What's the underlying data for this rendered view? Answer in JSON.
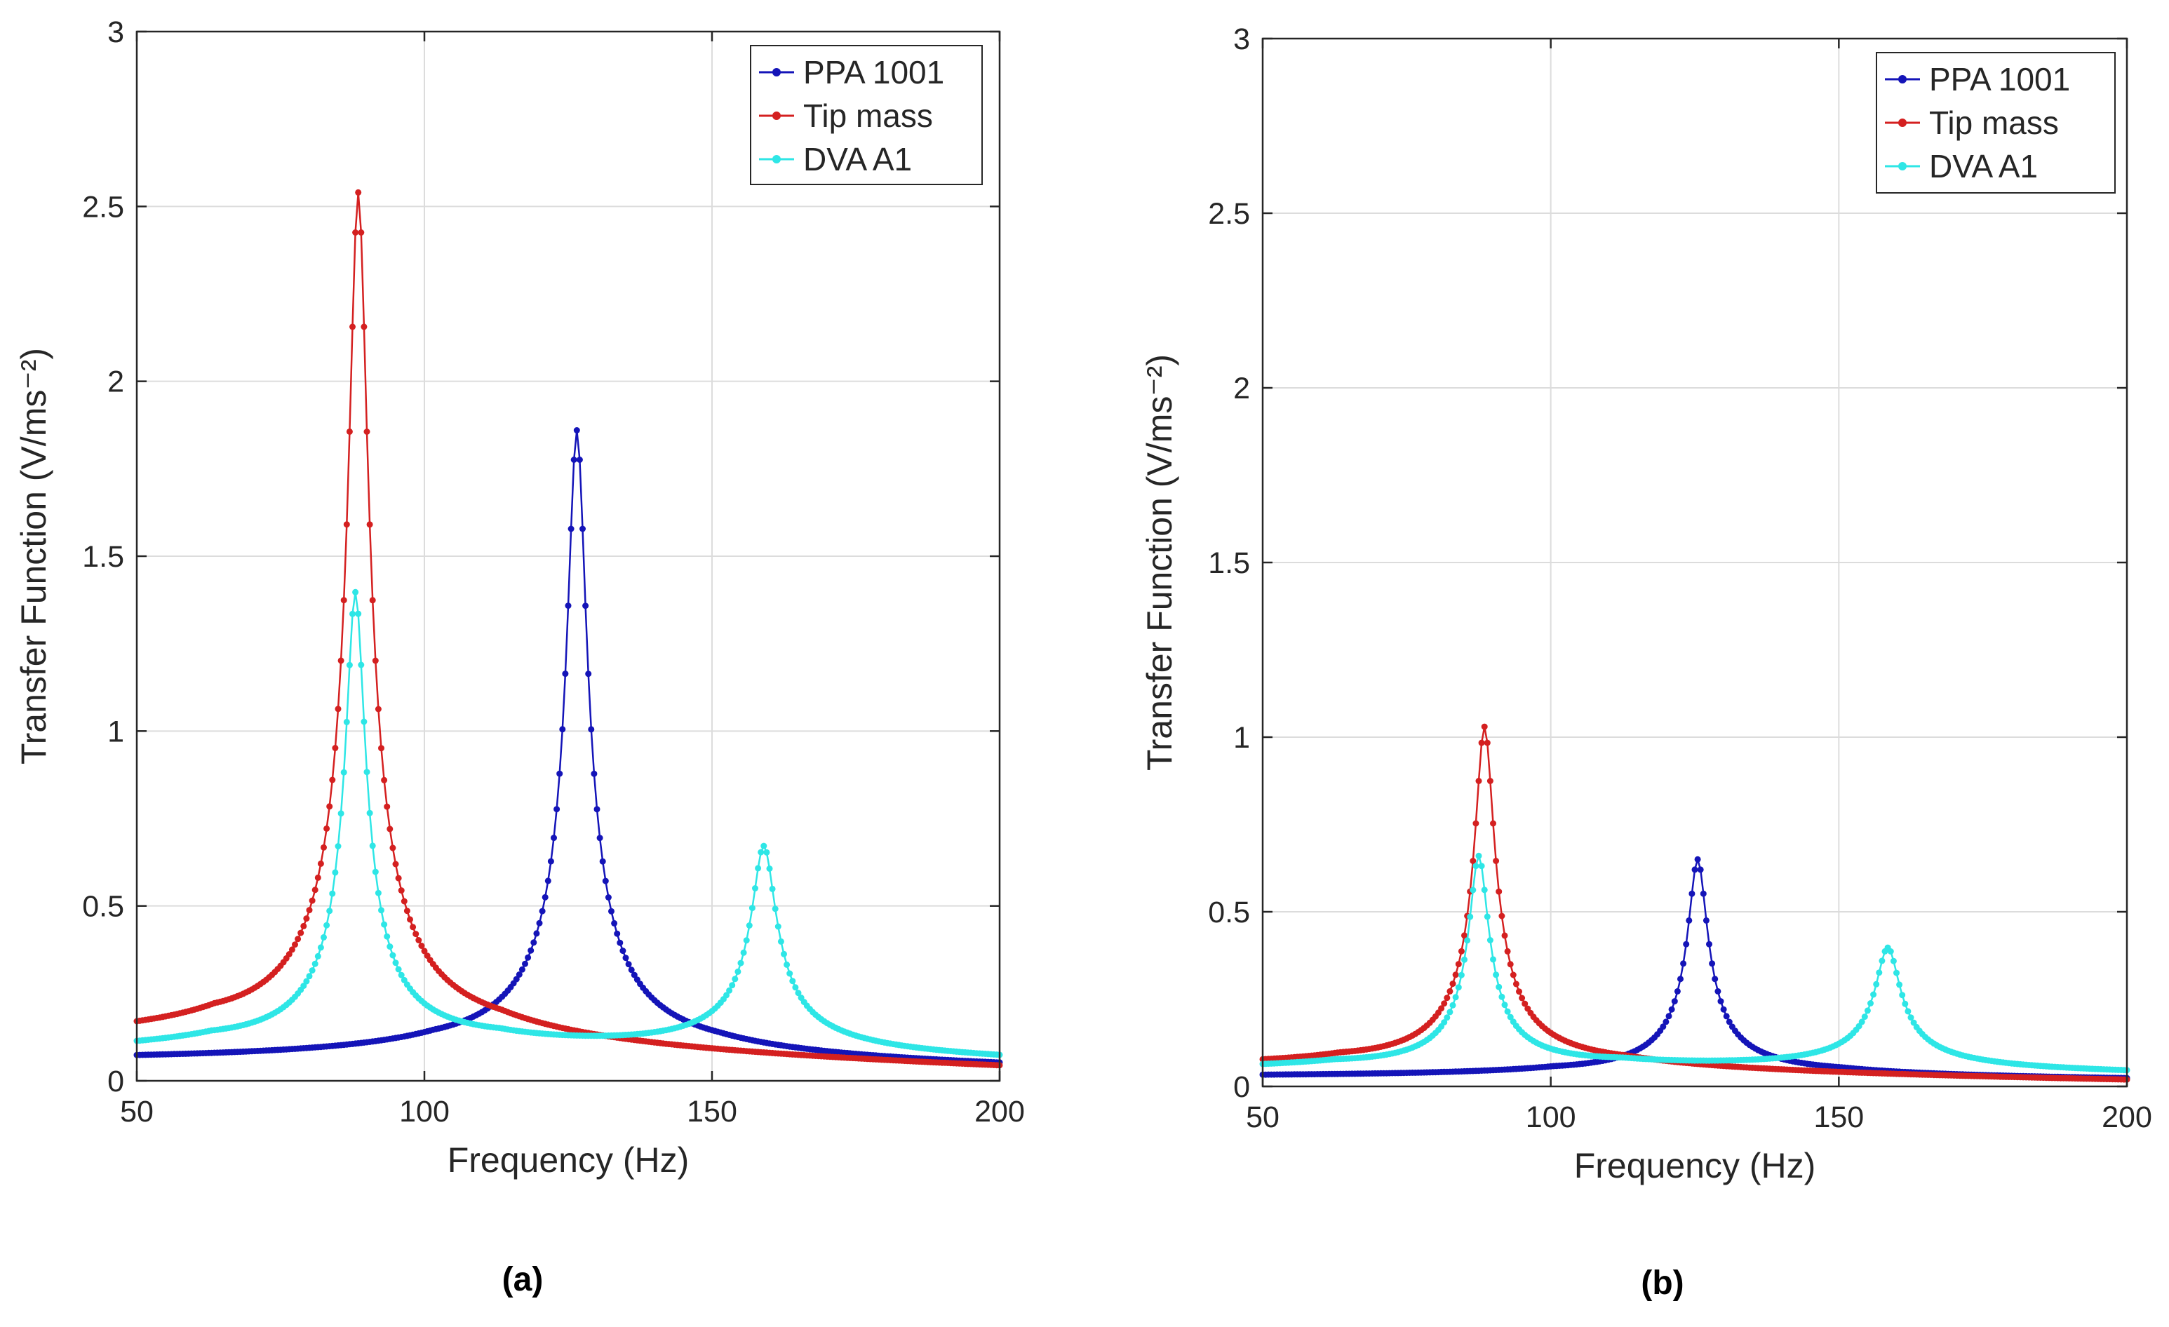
{
  "figure": {
    "colors": {
      "PPA 1001": "#1414b8",
      "Tip mass": "#d42020",
      "DVA A1": "#2ee6e6"
    }
  },
  "chart_data": [
    {
      "type": "line",
      "panel_label": "(a)",
      "xlabel": "Frequency (Hz)",
      "ylabel": "Transfer Function (V/ms⁻²)",
      "xlim": [
        50,
        200
      ],
      "ylim": [
        0,
        3
      ],
      "xticks": [
        "50",
        "100",
        "150",
        "200"
      ],
      "yticks": [
        "0",
        "0.5",
        "1",
        "1.5",
        "2",
        "2.5",
        "3"
      ],
      "grid": true,
      "legend_position": "top-right",
      "series": [
        {
          "name": "PPA 1001",
          "color": "#1414b8",
          "f0": 126.5,
          "peak": 1.86,
          "baseline_low": 0.035,
          "baseline_high": 0.012
        },
        {
          "name": "Tip mass",
          "color": "#d42020",
          "f0": 88.5,
          "peak": 2.54,
          "baseline_low": 0.065,
          "baseline_high": 0.008
        },
        {
          "name": "DVA A1",
          "color": "#2ee6e6",
          "f0": 88.0,
          "peak": 1.38,
          "f1": 159.0,
          "peak2": 0.61,
          "baseline_low": 0.045,
          "baseline_high": 0.025
        }
      ]
    },
    {
      "type": "line",
      "panel_label": "(b)",
      "xlabel": "Frequency (Hz)",
      "ylabel": "Transfer Function (V/ms⁻²)",
      "xlim": [
        50,
        200
      ],
      "ylim": [
        0,
        3
      ],
      "xticks": [
        "50",
        "100",
        "150",
        "200"
      ],
      "yticks": [
        "0",
        "0.5",
        "1",
        "1.5",
        "2",
        "2.5",
        "3"
      ],
      "grid": true,
      "legend_position": "top-right",
      "series": [
        {
          "name": "PPA 1001",
          "color": "#1414b8",
          "f0": 125.5,
          "peak": 0.65,
          "baseline_low": 0.02,
          "baseline_high": 0.01
        },
        {
          "name": "Tip mass",
          "color": "#d42020",
          "f0": 88.5,
          "peak": 1.03,
          "baseline_low": 0.035,
          "baseline_high": 0.005
        },
        {
          "name": "DVA A1",
          "color": "#2ee6e6",
          "f0": 87.5,
          "peak": 0.65,
          "f1": 158.5,
          "peak2": 0.36,
          "baseline_low": 0.03,
          "baseline_high": 0.02
        }
      ]
    }
  ]
}
